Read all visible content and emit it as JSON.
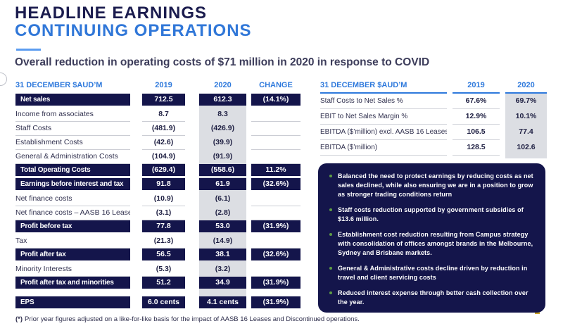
{
  "header": {
    "title_line1": "HEADLINE EARNINGS",
    "title_line2": "CONTINUING OPERATIONS",
    "subtitle": "Overall reduction in operating costs of $71 million in 2020 in response to COVID"
  },
  "colors": {
    "navy": "#14154B",
    "accent_blue": "#2E79DC",
    "underline_blue": "#5B9CF0",
    "highlight_gray": "#DCDEE3",
    "bullet_green": "#5E9C44",
    "corner_gold": "#C9A227"
  },
  "left_table": {
    "columns": [
      "31 DECEMBER $AUD’M",
      "2019",
      "2020",
      "CHANGE"
    ],
    "rows": [
      {
        "label": "Net sales",
        "v2019": "712.5",
        "v2020": "612.3",
        "change": "(14.1%)",
        "style": "dark"
      },
      {
        "label": "Income from associates",
        "v2019": "8.7",
        "v2020": "8.3",
        "change": "",
        "style": "light"
      },
      {
        "label": "Staff Costs",
        "v2019": "(481.9)",
        "v2020": "(426.9)",
        "change": "",
        "style": "light"
      },
      {
        "label": "Establishment Costs",
        "v2019": "(42.6)",
        "v2020": "(39.9)",
        "change": "",
        "style": "light"
      },
      {
        "label": "General & Administration Costs",
        "v2019": "(104.9)",
        "v2020": "(91.9)",
        "change": "",
        "style": "light"
      },
      {
        "label": "Total Operating Costs",
        "v2019": "(629.4)",
        "v2020": "(558.6)",
        "change": "11.2%",
        "style": "dark"
      },
      {
        "label": "Earnings before interest and tax",
        "v2019": "91.8",
        "v2020": "61.9",
        "change": "(32.6%)",
        "style": "dark"
      },
      {
        "label": "Net finance costs",
        "v2019": "(10.9)",
        "v2020": "(6.1)",
        "change": "",
        "style": "light"
      },
      {
        "label": "Net finance costs – AASB 16 Leases",
        "v2019": "(3.1)",
        "v2020": "(2.8)",
        "change": "",
        "style": "light"
      },
      {
        "label": "Profit before tax",
        "v2019": "77.8",
        "v2020": "53.0",
        "change": "(31.9%)",
        "style": "dark"
      },
      {
        "label": "Tax",
        "v2019": "(21.3)",
        "v2020": "(14.9)",
        "change": "",
        "style": "light"
      },
      {
        "label": "Profit after tax",
        "v2019": "56.5",
        "v2020": "38.1",
        "change": "(32.6%)",
        "style": "dark"
      },
      {
        "label": "Minority Interests",
        "v2019": "(5.3)",
        "v2020": "(3.2)",
        "change": "",
        "style": "light"
      },
      {
        "label": "Profit after tax and minorities",
        "v2019": "51.2",
        "v2020": "34.9",
        "change": "(31.9%)",
        "style": "dark"
      },
      {
        "label": "",
        "v2019": "",
        "v2020": "",
        "change": "",
        "style": "spacer"
      },
      {
        "label": "EPS",
        "v2019": "6.0 cents",
        "v2020": "4.1 cents",
        "change": "(31.9%)",
        "style": "dark"
      }
    ]
  },
  "right_table": {
    "columns": [
      "31 DECEMBER $AUD’M",
      "2019",
      "2020"
    ],
    "rows": [
      {
        "label": "Staff Costs to Net Sales %",
        "v2019": "67.6%",
        "v2020": "69.7%"
      },
      {
        "label": "EBIT to Net Sales Margin %",
        "v2019": "12.9%",
        "v2020": "10.1%"
      },
      {
        "label": "EBITDA ($’million) excl. AASB 16 Leases",
        "v2019": "106.5",
        "v2020": "77.4"
      },
      {
        "label": "EBITDA ($’million)",
        "v2019": "128.5",
        "v2020": "102.6"
      }
    ]
  },
  "commentary": {
    "bullets": [
      "Balanced the need to protect earnings by reducing costs as net sales declined, while also ensuring we are in a position to grow as stronger trading conditions return",
      "Staff costs reduction supported by government subsidies of $13.6 million.",
      "Establishment cost reduction resulting from Campus strategy with consolidation of offices amongst brands in the Melbourne, Sydney and Brisbane markets.",
      "General & Administrative costs decline driven by reduction in travel and client servicing costs",
      "Reduced interest expense through better cash collection over the year."
    ]
  },
  "footnote": {
    "marker": "(*)",
    "text": "Prior year figures adjusted on a like-for-like basis for the impact of AASB 16 Leases and Discontinued operations."
  }
}
